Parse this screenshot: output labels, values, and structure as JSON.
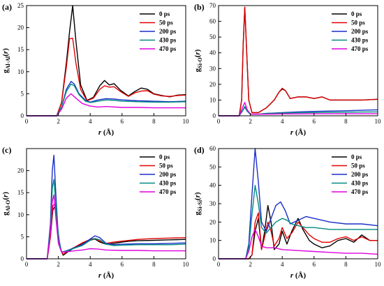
{
  "chart_data": [
    {
      "type": "line",
      "panel_label": "(a)",
      "xlabel": "r (Å)",
      "ylabel": "g",
      "ylabel_sub": "Al-Al",
      "ylabel_suffix": "(r)",
      "xlim": [
        0,
        10
      ],
      "ylim": [
        0,
        25
      ],
      "xticks": [
        0,
        2,
        4,
        6,
        8,
        10
      ],
      "yticks": [
        0,
        5,
        10,
        15,
        20,
        25
      ],
      "legend_position": "top-right",
      "series": [
        {
          "name": "0 ps",
          "color": "#000000",
          "x": [
            0,
            1.9,
            2.2,
            2.5,
            2.7,
            2.9,
            3.1,
            3.4,
            3.8,
            4.2,
            4.6,
            4.9,
            5.2,
            5.5,
            5.9,
            6.4,
            6.8,
            7.2,
            7.6,
            8.0,
            8.5,
            9.0,
            9.5,
            10.0
          ],
          "y": [
            0,
            0,
            3,
            12,
            19,
            25,
            17,
            7,
            3.5,
            4.2,
            6.8,
            8.0,
            7.0,
            7.3,
            5.8,
            4.5,
            5.5,
            6.3,
            6.0,
            5.0,
            4.6,
            4.3,
            4.7,
            4.8
          ]
        },
        {
          "name": "50 ps",
          "color": "#e00000",
          "x": [
            0,
            1.9,
            2.2,
            2.5,
            2.7,
            2.9,
            3.1,
            3.4,
            3.8,
            4.2,
            4.6,
            4.9,
            5.2,
            5.5,
            5.9,
            6.4,
            6.8,
            7.2,
            7.6,
            8.0,
            8.5,
            9.0,
            9.5,
            10.0
          ],
          "y": [
            0,
            0,
            3,
            11,
            17.5,
            17.6,
            12,
            6,
            3.4,
            4.0,
            6.0,
            6.8,
            6.5,
            6.6,
            5.5,
            4.4,
            5.2,
            5.6,
            5.7,
            4.9,
            4.5,
            4.4,
            4.6,
            4.7
          ]
        },
        {
          "name": "200 ps",
          "color": "#1a2fc8",
          "x": [
            0,
            1.9,
            2.2,
            2.5,
            2.8,
            3.0,
            3.3,
            3.7,
            4.0,
            4.5,
            5.0,
            5.5,
            6.0,
            7.0,
            8.0,
            9.0,
            10.0
          ],
          "y": [
            0,
            0,
            2,
            6,
            7.8,
            7.2,
            5,
            3.5,
            3.1,
            3.6,
            3.9,
            3.8,
            3.6,
            3.4,
            3.3,
            3.2,
            3.3
          ]
        },
        {
          "name": "430 ps",
          "color": "#008b80",
          "x": [
            0,
            1.9,
            2.2,
            2.5,
            2.8,
            3.0,
            3.3,
            3.7,
            4.0,
            4.5,
            5.0,
            5.5,
            6.0,
            7.0,
            8.0,
            9.0,
            10.0
          ],
          "y": [
            0,
            0,
            2,
            5.5,
            7.2,
            6.8,
            4.8,
            3.3,
            3.0,
            3.3,
            3.6,
            3.5,
            3.3,
            3.2,
            3.1,
            3.1,
            3.2
          ]
        },
        {
          "name": "470 ps",
          "color": "#e000e0",
          "x": [
            0,
            1.9,
            2.2,
            2.5,
            2.8,
            3.1,
            3.5,
            4.0,
            4.5,
            5.0,
            6.0,
            7.0,
            8.0,
            9.0,
            10.0
          ],
          "y": [
            0,
            0,
            1.5,
            4.0,
            5.0,
            4.0,
            2.8,
            2.2,
            2.0,
            2.1,
            1.9,
            1.9,
            1.8,
            1.8,
            1.8
          ]
        }
      ]
    },
    {
      "type": "line",
      "panel_label": "(b)",
      "xlabel": "r (Å)",
      "ylabel": "g",
      "ylabel_sub": "Si-O",
      "ylabel_suffix": "(r)",
      "xlim": [
        0,
        10
      ],
      "ylim": [
        0,
        70
      ],
      "xticks": [
        0,
        2,
        4,
        6,
        8,
        10
      ],
      "yticks": [
        0,
        10,
        20,
        30,
        40,
        50,
        60,
        70
      ],
      "legend_position": "top-right",
      "series": [
        {
          "name": "0 ps",
          "color": "#000000",
          "x": [
            0,
            1.3,
            1.45,
            1.55,
            1.65,
            1.75,
            1.9,
            2.1,
            2.5,
            3.0,
            3.5,
            3.8,
            4.0,
            4.2,
            4.5,
            5.0,
            5.5,
            6.0,
            6.5,
            7.0,
            7.5,
            8.0,
            9.0,
            10.0
          ],
          "y": [
            0,
            0,
            10,
            45,
            69,
            45,
            10,
            2,
            2,
            5,
            10,
            15,
            17,
            16,
            11,
            12,
            12,
            11,
            12,
            10,
            10,
            10,
            10,
            10.5
          ]
        },
        {
          "name": "50 ps",
          "color": "#e00000",
          "x": [
            0,
            1.3,
            1.45,
            1.55,
            1.65,
            1.75,
            1.9,
            2.1,
            2.5,
            3.0,
            3.5,
            3.8,
            4.0,
            4.2,
            4.5,
            5.0,
            5.5,
            6.0,
            6.5,
            7.0,
            7.5,
            8.0,
            9.0,
            10.0
          ],
          "y": [
            0,
            0,
            10,
            45,
            69,
            45,
            10,
            2,
            2,
            5,
            10,
            15,
            17.5,
            16,
            11,
            12,
            12,
            11,
            12,
            10,
            10,
            10,
            10,
            10.5
          ]
        },
        {
          "name": "200 ps",
          "color": "#1a2fc8",
          "x": [
            0,
            1.3,
            1.5,
            1.65,
            1.8,
            2.0,
            2.5,
            3.0,
            4.0,
            5.0,
            6.0,
            7.0,
            8.0,
            9.0,
            10.0
          ],
          "y": [
            0,
            0,
            3,
            5.5,
            3,
            1,
            1,
            1.5,
            2,
            2.5,
            2.8,
            3,
            3.2,
            3.5,
            3.8
          ]
        },
        {
          "name": "430 ps",
          "color": "#008b80",
          "x": [
            0,
            1.3,
            1.5,
            1.65,
            1.8,
            2.0,
            2.5,
            3.0,
            4.0,
            5.0,
            6.0,
            7.0,
            8.0,
            9.0,
            10.0
          ],
          "y": [
            0,
            0,
            3,
            6,
            3,
            1,
            1,
            1.5,
            1.8,
            2,
            2.1,
            2.2,
            2.3,
            2.4,
            2.5
          ]
        },
        {
          "name": "470 ps",
          "color": "#e000e0",
          "x": [
            0,
            1.3,
            1.5,
            1.65,
            1.8,
            2.0,
            2.5,
            3.0,
            4.0,
            5.0,
            6.0,
            7.0,
            8.0,
            9.0,
            10.0
          ],
          "y": [
            0,
            0,
            5,
            8.5,
            4,
            1,
            1,
            1,
            1.2,
            1.2,
            1.3,
            1.3,
            1.3,
            1.3,
            1.3
          ]
        }
      ]
    },
    {
      "type": "line",
      "panel_label": "(c)",
      "xlabel": "r (Å)",
      "ylabel": "g",
      "ylabel_sub": "Al-O",
      "ylabel_suffix": "(r)",
      "xlim": [
        0,
        10
      ],
      "ylim": [
        0,
        25
      ],
      "xticks": [
        0,
        2,
        4,
        6,
        8,
        10
      ],
      "yticks": [
        0,
        5,
        10,
        15,
        20
      ],
      "legend_position": "top-right",
      "series": [
        {
          "name": "0 ps",
          "color": "#000000",
          "x": [
            0,
            1.3,
            1.5,
            1.65,
            1.8,
            1.95,
            2.1,
            2.3,
            2.6,
            3.0,
            3.5,
            4.0,
            4.3,
            4.6,
            5.0,
            5.5,
            6.0,
            6.5,
            7.0,
            8.0,
            9.0,
            10.0
          ],
          "y": [
            0,
            0,
            5,
            11,
            12,
            7,
            2.5,
            0.8,
            1.6,
            2.5,
            3.5,
            4.2,
            4.5,
            3.8,
            3.3,
            3.5,
            3.8,
            4.0,
            4.1,
            4.2,
            4.3,
            4.4
          ]
        },
        {
          "name": "50 ps",
          "color": "#e00000",
          "x": [
            0,
            1.3,
            1.5,
            1.65,
            1.8,
            1.95,
            2.1,
            2.3,
            2.6,
            3.0,
            3.5,
            4.0,
            4.3,
            4.6,
            5.0,
            5.5,
            6.0,
            6.5,
            7.0,
            8.0,
            9.0,
            10.0
          ],
          "y": [
            0,
            0,
            5,
            12,
            12.5,
            7,
            2.5,
            1.0,
            1.8,
            2.6,
            3.6,
            4.4,
            4.6,
            4.0,
            3.5,
            3.8,
            4.0,
            4.2,
            4.4,
            4.6,
            4.7,
            4.8
          ]
        },
        {
          "name": "200 ps",
          "color": "#1a2fc8",
          "x": [
            0,
            1.3,
            1.5,
            1.62,
            1.72,
            1.85,
            2.0,
            2.2,
            2.5,
            3.0,
            3.5,
            4.0,
            4.3,
            4.6,
            5.0,
            5.5,
            6.0,
            7.0,
            8.0,
            9.0,
            10.0
          ],
          "y": [
            0,
            0,
            8,
            20,
            23.5,
            14,
            5,
            1.5,
            1.8,
            2.5,
            3.2,
            4.5,
            5.2,
            4.8,
            3.5,
            3.2,
            3.3,
            3.4,
            3.4,
            3.5,
            3.6
          ]
        },
        {
          "name": "430 ps",
          "color": "#008b80",
          "x": [
            0,
            1.3,
            1.5,
            1.62,
            1.72,
            1.85,
            2.0,
            2.2,
            2.5,
            3.0,
            3.5,
            4.0,
            4.3,
            4.6,
            5.0,
            5.5,
            6.0,
            7.0,
            8.0,
            9.0,
            10.0
          ],
          "y": [
            0,
            0,
            7,
            16,
            18,
            12,
            4.5,
            1.5,
            1.7,
            2.4,
            3.0,
            4.2,
            4.6,
            4.3,
            3.3,
            3.0,
            3.1,
            3.2,
            3.2,
            3.2,
            3.3
          ]
        },
        {
          "name": "470 ps",
          "color": "#e000e0",
          "x": [
            0,
            1.3,
            1.5,
            1.62,
            1.72,
            1.85,
            2.0,
            2.2,
            2.5,
            3.0,
            3.5,
            4.0,
            4.5,
            5.0,
            6.0,
            7.0,
            8.0,
            9.0,
            10.0
          ],
          "y": [
            0,
            0,
            6,
            13,
            14.5,
            9,
            3.5,
            1.5,
            1.6,
            1.8,
            2.0,
            2.3,
            2.2,
            2.0,
            1.9,
            1.9,
            1.8,
            1.8,
            1.8
          ]
        }
      ]
    },
    {
      "type": "line",
      "panel_label": "(d)",
      "xlabel": "r (Å)",
      "ylabel": "g",
      "ylabel_sub": "Si-Si",
      "ylabel_suffix": "(r)",
      "xlim": [
        0,
        10
      ],
      "ylim": [
        0,
        60
      ],
      "xticks": [
        0,
        2,
        4,
        6,
        8,
        10
      ],
      "yticks": [
        0,
        10,
        20,
        30,
        40,
        50,
        60
      ],
      "legend_position": "top-right",
      "series": [
        {
          "name": "0 ps",
          "color": "#000000",
          "x": [
            0,
            1.9,
            2.1,
            2.3,
            2.5,
            2.7,
            2.9,
            3.1,
            3.3,
            3.5,
            3.8,
            4.0,
            4.3,
            4.6,
            5.0,
            5.3,
            5.7,
            6.0,
            6.5,
            7.0,
            7.5,
            8.0,
            8.5,
            9.0,
            9.5,
            10.0
          ],
          "y": [
            0,
            0,
            2,
            15,
            22,
            5,
            15,
            29,
            20,
            5,
            8,
            15,
            8,
            15,
            22,
            16,
            10,
            8,
            6,
            7,
            10,
            11,
            9,
            13,
            10,
            10
          ]
        },
        {
          "name": "50 ps",
          "color": "#e00000",
          "x": [
            0,
            1.9,
            2.1,
            2.3,
            2.5,
            2.7,
            2.9,
            3.1,
            3.3,
            3.5,
            3.8,
            4.0,
            4.3,
            4.6,
            5.0,
            5.3,
            5.7,
            6.0,
            6.5,
            7.0,
            7.5,
            8.0,
            8.5,
            9.0,
            9.5,
            10.0
          ],
          "y": [
            0,
            0,
            2,
            20,
            25,
            5,
            12,
            20,
            15,
            7,
            11,
            17,
            11,
            14,
            20,
            17,
            13,
            11,
            9,
            9,
            11,
            12,
            10,
            12,
            10,
            10
          ]
        },
        {
          "name": "200 ps",
          "color": "#1a2fc8",
          "x": [
            0,
            1.7,
            1.9,
            2.1,
            2.3,
            2.5,
            2.7,
            3.0,
            3.3,
            3.6,
            3.9,
            4.2,
            4.5,
            5.0,
            5.5,
            6.0,
            6.5,
            7.0,
            8.0,
            9.0,
            10.0
          ],
          "y": [
            0,
            0,
            8,
            35,
            60,
            42,
            20,
            15,
            22,
            29,
            31,
            26,
            19,
            21,
            23,
            22,
            21,
            20,
            19,
            19,
            18
          ]
        },
        {
          "name": "430 ps",
          "color": "#008b80",
          "x": [
            0,
            1.7,
            1.9,
            2.1,
            2.3,
            2.5,
            2.7,
            3.0,
            3.3,
            3.6,
            4.0,
            4.3,
            4.6,
            5.0,
            5.5,
            6.0,
            7.0,
            8.0,
            9.0,
            10.0
          ],
          "y": [
            0,
            0,
            6,
            24,
            40,
            30,
            17,
            14,
            17,
            20,
            22,
            21,
            19,
            18,
            17,
            17,
            16,
            16,
            16,
            16
          ]
        },
        {
          "name": "470 ps",
          "color": "#e000e0",
          "x": [
            0,
            1.7,
            1.9,
            2.1,
            2.3,
            2.5,
            2.7,
            3.0,
            3.5,
            4.0,
            5.0,
            6.0,
            7.0,
            8.0,
            9.0,
            10.0
          ],
          "y": [
            0,
            0,
            4,
            12,
            16,
            12,
            7,
            6,
            6,
            5,
            4.5,
            4,
            3.5,
            3,
            3,
            2.5
          ]
        }
      ]
    }
  ]
}
